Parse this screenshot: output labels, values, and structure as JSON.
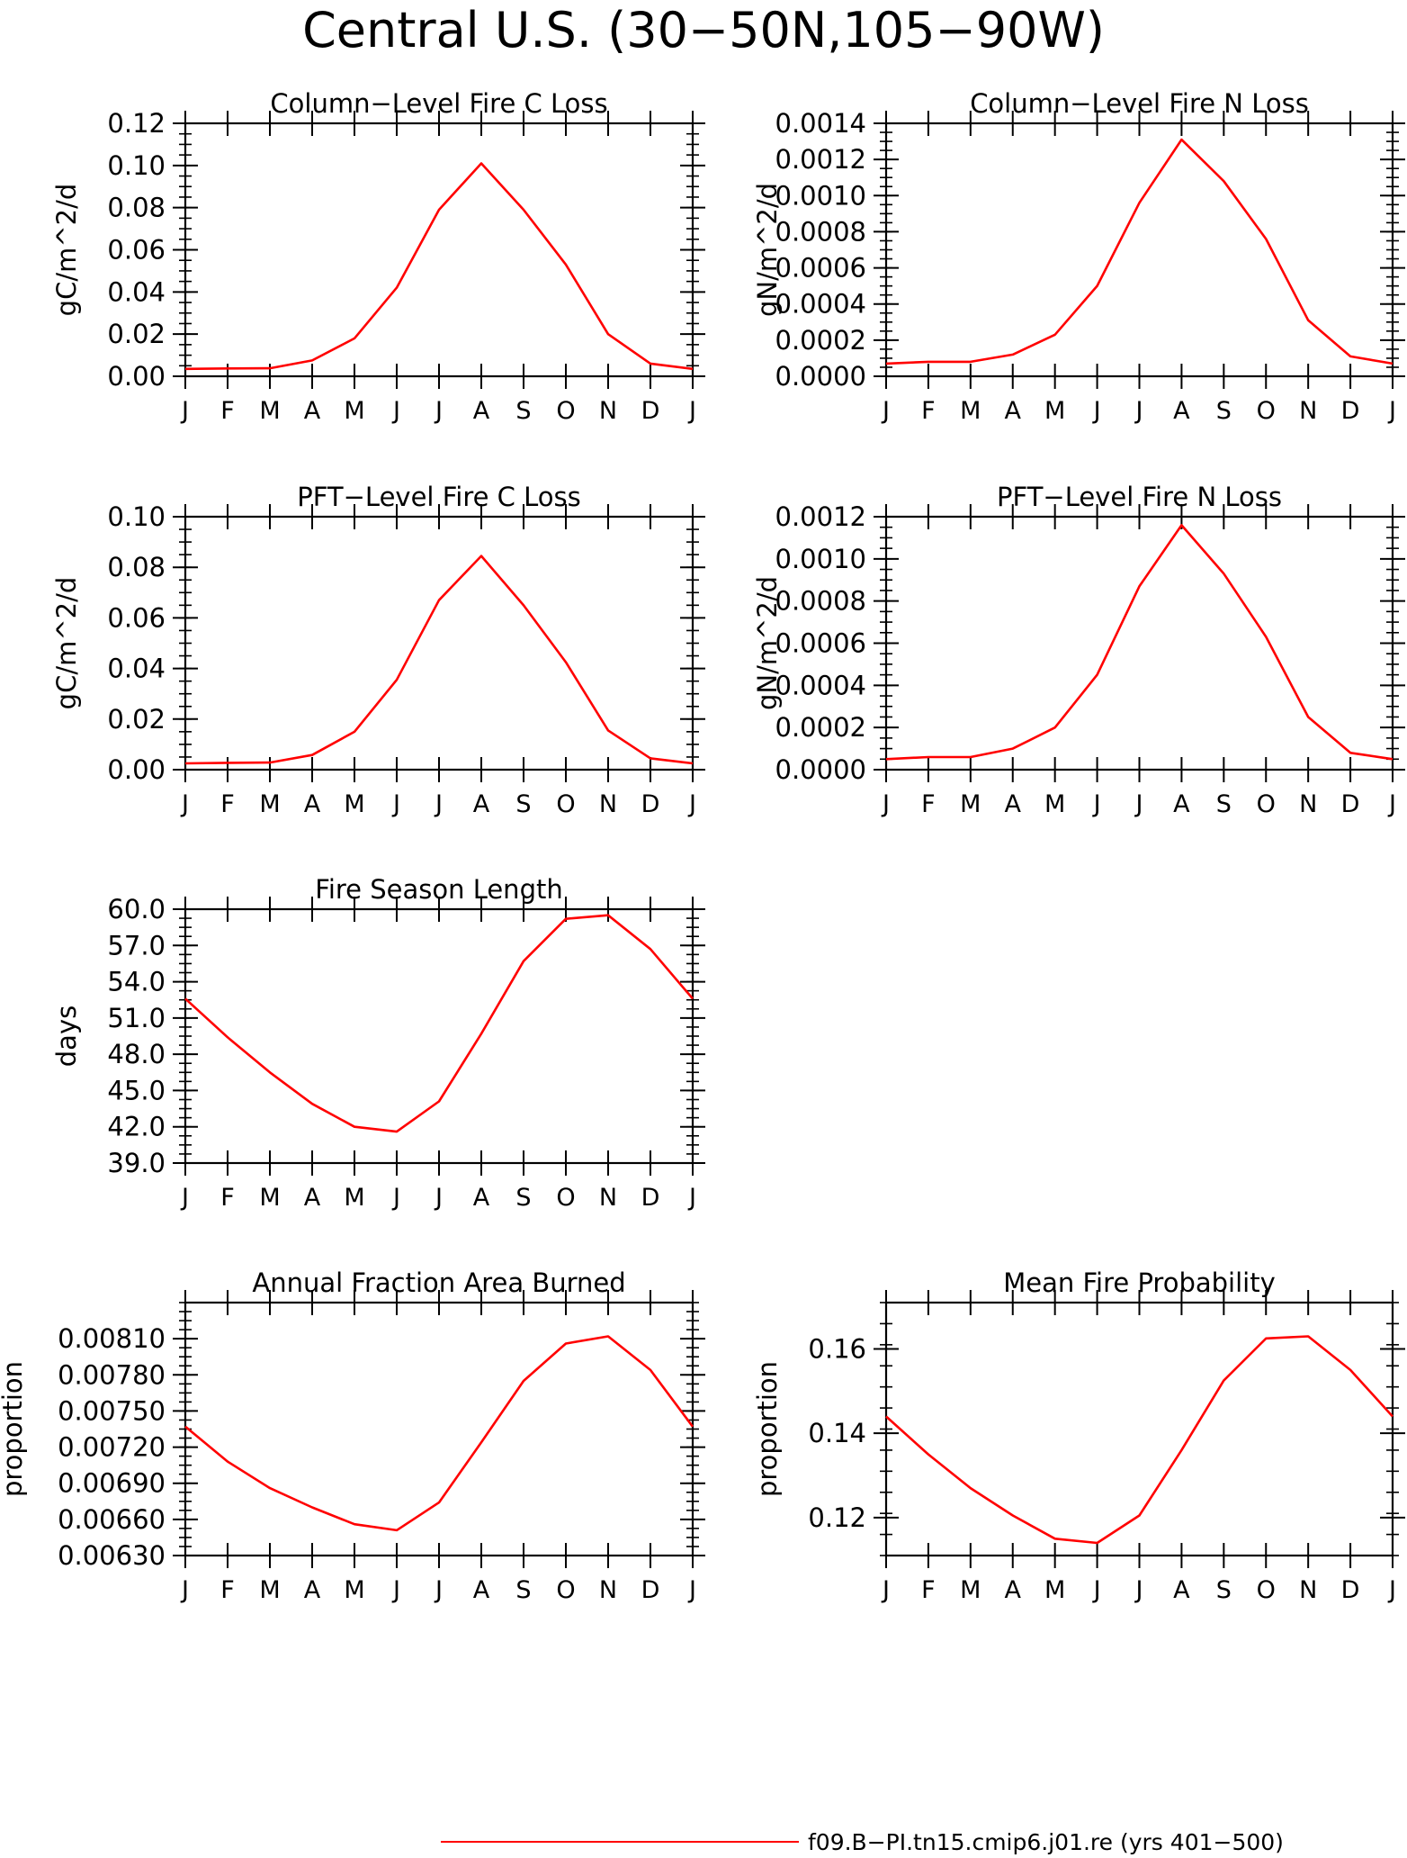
{
  "figure": {
    "title": "Central U.S. (30−50N,105−90W)",
    "legend": {
      "label": "f09.B−PI.tn15.cmip6.j01.re (yrs 401−500)",
      "line_color": "#ff0000"
    }
  },
  "colors": {
    "series": "#ff0000",
    "axis": "#000000"
  },
  "chart_data": [
    {
      "type": "line",
      "title": "Column−Level Fire C Loss",
      "ylabel": "gC/m^2/d",
      "categories": [
        "J",
        "F",
        "M",
        "A",
        "M",
        "J",
        "J",
        "A",
        "S",
        "O",
        "N",
        "D",
        "J"
      ],
      "yticks": [
        "0.00",
        "0.02",
        "0.04",
        "0.06",
        "0.08",
        "0.10",
        "0.12"
      ],
      "ylim": [
        0,
        0.12
      ],
      "values": [
        0.0035,
        0.0037,
        0.0038,
        0.0075,
        0.018,
        0.042,
        0.079,
        0.101,
        0.079,
        0.053,
        0.02,
        0.006,
        0.0035
      ]
    },
    {
      "type": "line",
      "title": "Column−Level Fire N Loss",
      "ylabel": "gN/m^2/d",
      "categories": [
        "J",
        "F",
        "M",
        "A",
        "M",
        "J",
        "J",
        "A",
        "S",
        "O",
        "N",
        "D",
        "J"
      ],
      "yticks": [
        "0.0000",
        "0.0002",
        "0.0004",
        "0.0006",
        "0.0008",
        "0.0010",
        "0.0012",
        "0.0014"
      ],
      "ylim": [
        0,
        0.0014
      ],
      "values": [
        7e-05,
        8e-05,
        8e-05,
        0.00012,
        0.00023,
        0.0005,
        0.00096,
        0.00131,
        0.00108,
        0.00076,
        0.00031,
        0.00011,
        7e-05
      ]
    },
    {
      "type": "line",
      "title": "PFT−Level Fire C Loss",
      "ylabel": "gC/m^2/d",
      "categories": [
        "J",
        "F",
        "M",
        "A",
        "M",
        "J",
        "J",
        "A",
        "S",
        "O",
        "N",
        "D",
        "J"
      ],
      "yticks": [
        "0.00",
        "0.02",
        "0.04",
        "0.06",
        "0.08",
        "0.10"
      ],
      "ylim": [
        0,
        0.1
      ],
      "values": [
        0.0025,
        0.0027,
        0.0028,
        0.0058,
        0.015,
        0.0355,
        0.067,
        0.0845,
        0.065,
        0.0425,
        0.0155,
        0.0045,
        0.0025
      ]
    },
    {
      "type": "line",
      "title": "PFT−Level Fire N Loss",
      "ylabel": "gN/m^2/d",
      "categories": [
        "J",
        "F",
        "M",
        "A",
        "M",
        "J",
        "J",
        "A",
        "S",
        "O",
        "N",
        "D",
        "J"
      ],
      "yticks": [
        "0.0000",
        "0.0002",
        "0.0004",
        "0.0006",
        "0.0008",
        "0.0010",
        "0.0012"
      ],
      "ylim": [
        0,
        0.0012
      ],
      "values": [
        5e-05,
        6e-05,
        6e-05,
        0.0001,
        0.0002,
        0.00045,
        0.00087,
        0.00116,
        0.00093,
        0.00063,
        0.00025,
        8e-05,
        5e-05
      ]
    },
    {
      "type": "line",
      "title": "Fire Season Length",
      "ylabel": "days",
      "categories": [
        "J",
        "F",
        "M",
        "A",
        "M",
        "J",
        "J",
        "A",
        "S",
        "O",
        "N",
        "D",
        "J"
      ],
      "yticks": [
        "39.0",
        "42.0",
        "45.0",
        "48.0",
        "51.0",
        "54.0",
        "57.0",
        "60.0"
      ],
      "ylim": [
        39,
        60
      ],
      "values": [
        52.6,
        49.4,
        46.5,
        43.9,
        42.0,
        41.6,
        44.1,
        49.7,
        55.7,
        59.2,
        59.5,
        56.7,
        52.6
      ]
    },
    {
      "type": "line",
      "title": "Annual Fraction Area Burned",
      "ylabel": "proportion",
      "categories": [
        "J",
        "F",
        "M",
        "A",
        "M",
        "J",
        "J",
        "A",
        "S",
        "O",
        "N",
        "D",
        "J"
      ],
      "yticks": [
        "0.00630",
        "0.00660",
        "0.00690",
        "0.00720",
        "0.00750",
        "0.00780",
        "0.00810"
      ],
      "ylim": [
        0.0063,
        0.0084
      ],
      "values": [
        0.00737,
        0.00708,
        0.00686,
        0.0067,
        0.00656,
        0.00651,
        0.00674,
        0.00724,
        0.00775,
        0.00806,
        0.00812,
        0.00784,
        0.00737
      ]
    },
    {
      "type": "line",
      "title": "Mean Fire Probability",
      "ylabel": "proportion",
      "categories": [
        "J",
        "F",
        "M",
        "A",
        "M",
        "J",
        "J",
        "A",
        "S",
        "O",
        "N",
        "D",
        "J"
      ],
      "yticks": [
        "0.12",
        "0.14",
        "0.16"
      ],
      "ylim": [
        0.111,
        0.171
      ],
      "values": [
        0.144,
        0.135,
        0.127,
        0.1205,
        0.115,
        0.114,
        0.1205,
        0.136,
        0.1525,
        0.1625,
        0.163,
        0.155,
        0.144
      ]
    }
  ]
}
